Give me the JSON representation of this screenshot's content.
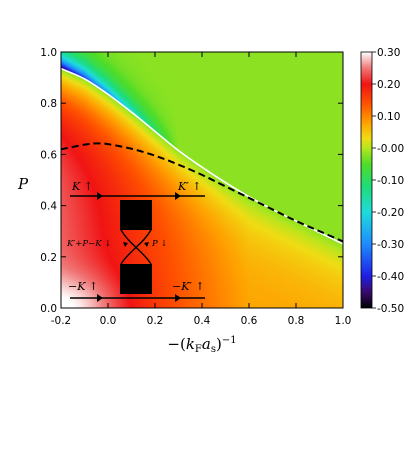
{
  "chart_data": {
    "type": "heatmap",
    "xlabel": "−(k_F a_s)^{-1}",
    "xlabel_parts": {
      "pre": "−(",
      "k": "k",
      "ksub": "F",
      "a": "a",
      "asub": "s",
      "post": ")",
      "sup": "−1"
    },
    "ylabel": "P",
    "xlim": [
      -0.2,
      1.0
    ],
    "ylim": [
      0.0,
      1.0
    ],
    "x_ticks": [
      {
        "value": -0.2,
        "label": "-0.2"
      },
      {
        "value": 0.0,
        "label": "0.0"
      },
      {
        "value": 0.2,
        "label": "0.2"
      },
      {
        "value": 0.4,
        "label": "0.4"
      },
      {
        "value": 0.6,
        "label": "0.6"
      },
      {
        "value": 0.8,
        "label": "0.8"
      },
      {
        "value": 1.0,
        "label": "1.0"
      }
    ],
    "y_ticks": [
      {
        "value": 0.0,
        "label": "0.0"
      },
      {
        "value": 0.2,
        "label": "0.2"
      },
      {
        "value": 0.4,
        "label": "0.4"
      },
      {
        "value": 0.6,
        "label": "0.6"
      },
      {
        "value": 0.8,
        "label": "0.8"
      },
      {
        "value": 1.0,
        "label": "1.0"
      }
    ],
    "colorbar": {
      "range": [
        -0.5,
        0.3
      ],
      "ticks": [
        {
          "value": 0.3,
          "label": "0.30"
        },
        {
          "value": 0.2,
          "label": "0.20"
        },
        {
          "value": 0.1,
          "label": "0.10"
        },
        {
          "value": 0.0,
          "label": "-0.00"
        },
        {
          "value": -0.1,
          "label": "-0.10"
        },
        {
          "value": -0.2,
          "label": "-0.20"
        },
        {
          "value": -0.3,
          "label": "-0.30"
        },
        {
          "value": -0.4,
          "label": "-0.40"
        },
        {
          "value": -0.5,
          "label": "-0.50"
        }
      ],
      "stops": [
        {
          "value": -0.5,
          "color": "#000000"
        },
        {
          "value": -0.45,
          "color": "#3a0a6e"
        },
        {
          "value": -0.4,
          "color": "#1e1ee6"
        },
        {
          "value": -0.3,
          "color": "#1e8cff"
        },
        {
          "value": -0.2,
          "color": "#1edcdc"
        },
        {
          "value": -0.12,
          "color": "#1edc78"
        },
        {
          "value": -0.05,
          "color": "#50dc28"
        },
        {
          "value": 0.0,
          "color": "#b4e61e"
        },
        {
          "value": 0.03,
          "color": "#f0dc14"
        },
        {
          "value": 0.08,
          "color": "#ffa000"
        },
        {
          "value": 0.14,
          "color": "#ff5000"
        },
        {
          "value": 0.2,
          "color": "#f01414"
        },
        {
          "value": 0.25,
          "color": "#f07878"
        },
        {
          "value": 0.3,
          "color": "#ffffff"
        }
      ]
    },
    "lines": [
      {
        "style": "solid",
        "color": "#ffffff",
        "x": [
          -0.2,
          -0.1,
          0.0,
          0.1,
          0.2,
          0.3,
          0.4,
          0.5,
          0.6,
          0.7,
          0.8,
          0.9,
          1.0
        ],
        "y": [
          0.935,
          0.895,
          0.835,
          0.765,
          0.69,
          0.615,
          0.55,
          0.49,
          0.435,
          0.385,
          0.34,
          0.295,
          0.25
        ]
      },
      {
        "style": "dashed",
        "color": "#000000",
        "x": [
          -0.2,
          -0.1,
          -0.05,
          0.0,
          0.1,
          0.2,
          0.3,
          0.4,
          0.5,
          0.6,
          0.7,
          0.8,
          0.9,
          1.0
        ],
        "y": [
          0.62,
          0.638,
          0.643,
          0.64,
          0.622,
          0.595,
          0.56,
          0.52,
          0.475,
          0.43,
          0.385,
          0.34,
          0.3,
          0.26
        ]
      }
    ],
    "diagram_labels": {
      "top_left": "K ↑",
      "top_right": "K′ ↑",
      "bottom_left": "−K ↑",
      "bottom_right": "−K′ ↑",
      "mid_left": "K′+P−K ↓",
      "mid_right": "P ↓"
    }
  }
}
